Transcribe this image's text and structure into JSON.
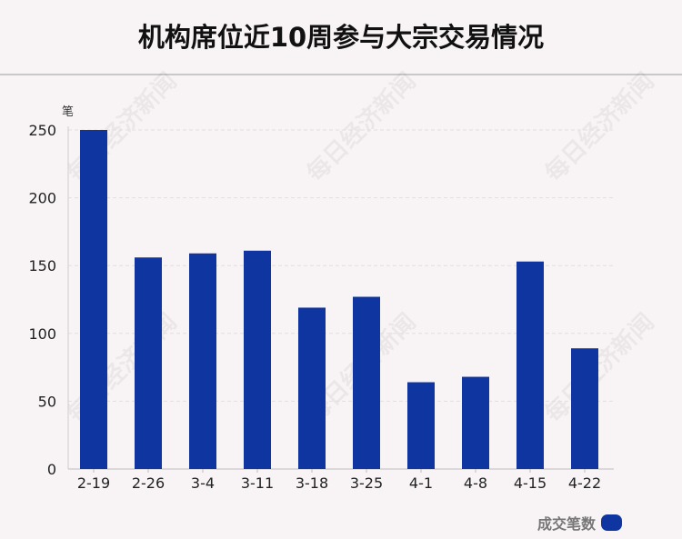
{
  "title": "机构席位近10周参与大宗交易情况",
  "unit": "笔",
  "legend": {
    "label": "成交笔数"
  },
  "watermark": "每日经济新闻",
  "colors": {
    "bar": "#0f36a0",
    "background": "#f8f4f6"
  },
  "chart_data": {
    "type": "bar",
    "title": "机构席位近10周参与大宗交易情况",
    "ylabel": "笔",
    "xlabel": "",
    "categories": [
      "2-19",
      "2-26",
      "3-4",
      "3-11",
      "3-18",
      "3-25",
      "4-1",
      "4-8",
      "4-15",
      "4-22"
    ],
    "series": [
      {
        "name": "成交笔数",
        "values": [
          250,
          156,
          159,
          161,
          119,
          127,
          64,
          68,
          153,
          89
        ]
      }
    ],
    "ylim": [
      0,
      250
    ],
    "yticks": [
      0,
      50,
      100,
      150,
      200,
      250
    ],
    "grid": true,
    "legend_position": "bottom-right"
  }
}
